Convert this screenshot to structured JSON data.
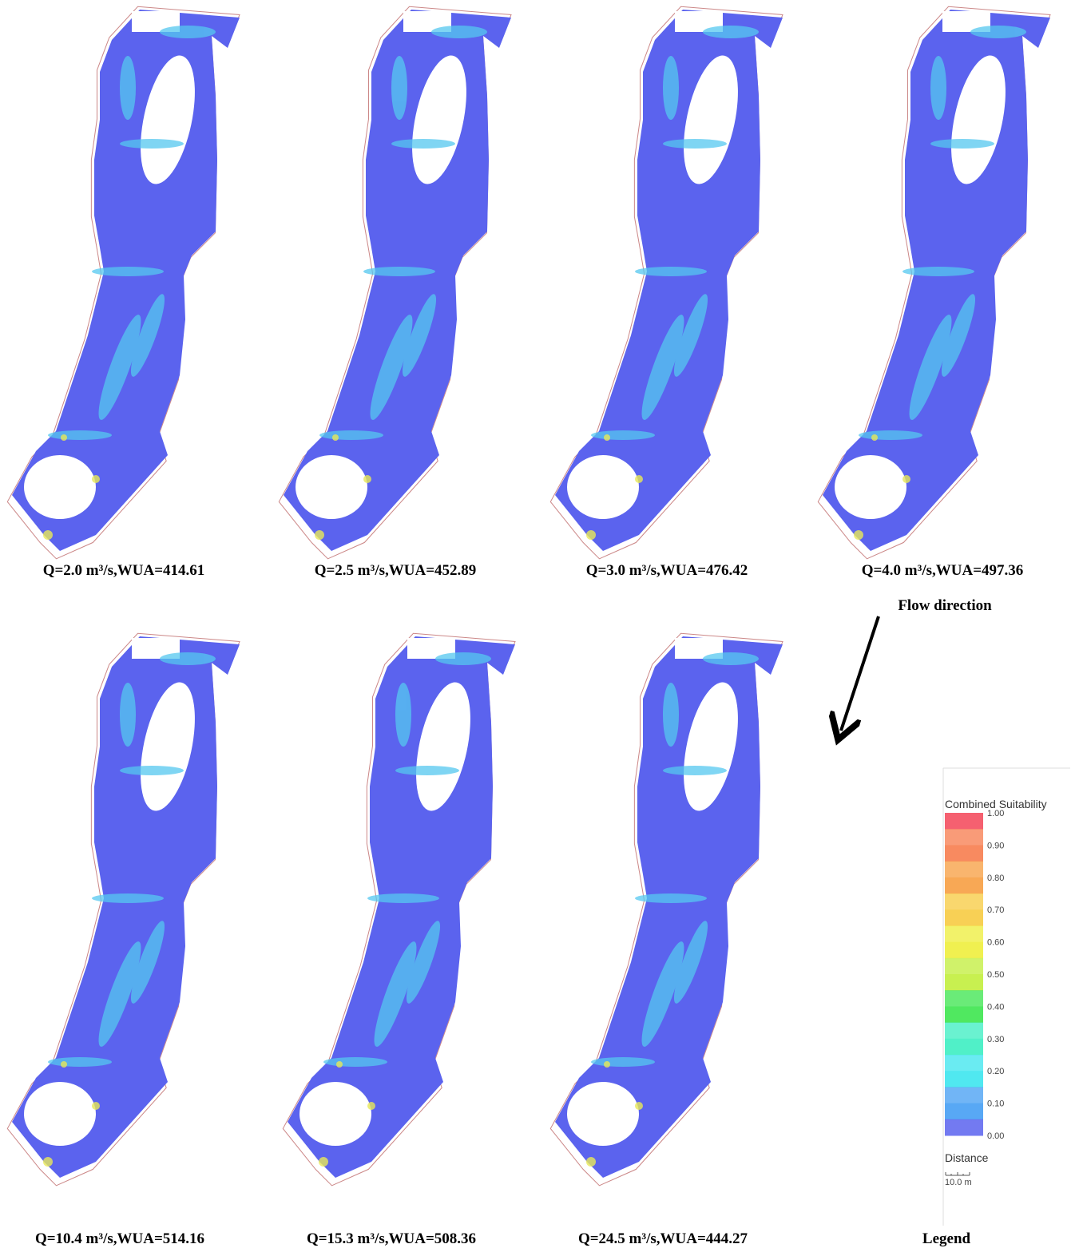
{
  "panels": [
    {
      "caption": "Q=2.0 m³/s,WUA=414.61"
    },
    {
      "caption": "Q=2.5 m³/s,WUA=452.89"
    },
    {
      "caption": "Q=3.0 m³/s,WUA=476.42"
    },
    {
      "caption": "Q=4.0 m³/s,WUA=497.36"
    },
    {
      "caption": "Q=10.4 m³/s,WUA=514.16"
    },
    {
      "caption": "Q=15.3 m³/s,WUA=508.36"
    },
    {
      "caption": "Q=24.5 m³/s,WUA=444.27"
    }
  ],
  "flow_direction": "Flow direction",
  "legend": {
    "title": "Combined Suitability",
    "ticks": [
      "1.00",
      "0.90",
      "0.80",
      "0.70",
      "0.60",
      "0.50",
      "0.40",
      "0.30",
      "0.20",
      "0.10",
      "0.00"
    ],
    "distance_label": "Distance",
    "scale": "10.0 m",
    "caption": "Legend"
  }
}
